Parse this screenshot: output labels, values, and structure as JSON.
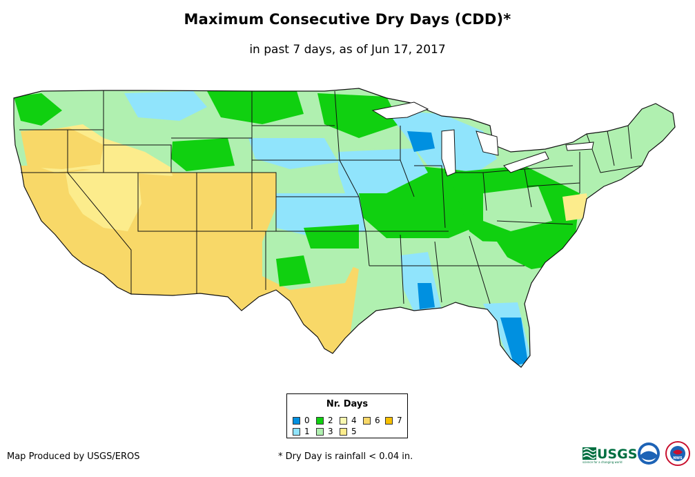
{
  "title": "Maximum Consecutive Dry Days (CDD)*",
  "subtitle": "in past 7 days, as of Jun 17, 2017",
  "legend": {
    "title": "Nr. Days",
    "items": [
      {
        "label": "0",
        "color": "#0090e0"
      },
      {
        "label": "1",
        "color": "#90e4fc"
      },
      {
        "label": "2",
        "color": "#10d010"
      },
      {
        "label": "3",
        "color": "#b0f0b0"
      },
      {
        "label": "4",
        "color": "#f8f8b0"
      },
      {
        "label": "5",
        "color": "#fcec8c"
      },
      {
        "label": "6",
        "color": "#f8d868"
      },
      {
        "label": "7",
        "color": "#f8c000"
      }
    ]
  },
  "producer": "Map Produced by USGS/EROS",
  "footnote": "* Dry Day is rainfall < 0.04 in.",
  "logos": {
    "usgs": "USGS",
    "usgs_tagline": "science for a changing world",
    "noaa": "noaa",
    "nws": "NWS"
  },
  "colors": {
    "ocean": "#ffffff",
    "border": "#111111"
  }
}
